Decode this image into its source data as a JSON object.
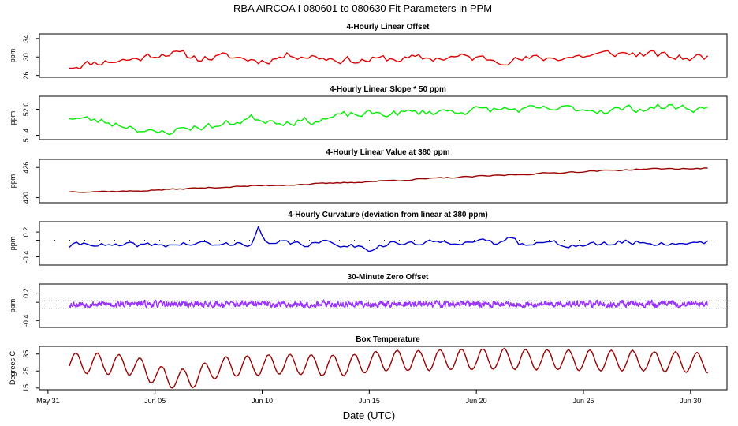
{
  "figure": {
    "title": "RBA   AIRCOA I   080601 to 080630   Fit Parameters in PPM",
    "xlabel": "Date (UTC)",
    "x_ticks": [
      {
        "day": 0,
        "label": "May 31"
      },
      {
        "day": 5,
        "label": "Jun 05"
      },
      {
        "day": 10,
        "label": "Jun 10"
      },
      {
        "day": 15,
        "label": "Jun 15"
      },
      {
        "day": 20,
        "label": "Jun 20"
      },
      {
        "day": 25,
        "label": "Jun 25"
      },
      {
        "day": 30,
        "label": "Jun 30"
      }
    ],
    "x_range_days": [
      -0.4,
      31.7
    ],
    "data_span_days": [
      1.0,
      30.8
    ]
  },
  "chart_data": [
    {
      "type": "line",
      "title": "4-Hourly Linear Offset",
      "ylabel": "ppm",
      "color": "#e00000",
      "ylim": [
        25.6,
        35.0
      ],
      "yticks": [
        26,
        30,
        34
      ],
      "ytick_labels": [
        "26",
        "30",
        "34"
      ],
      "points_per_day": 6,
      "x": [
        1.0,
        2.5,
        4.0,
        5.5,
        7.0,
        8.5,
        10.0,
        11.5,
        13.0,
        14.5,
        16.0,
        17.5,
        19.0,
        20.5,
        22.0,
        23.5,
        25.0,
        26.5,
        28.0,
        29.5,
        30.8
      ],
      "y": [
        28.0,
        29.0,
        29.5,
        31.0,
        29.8,
        30.0,
        29.2,
        30.6,
        29.8,
        29.2,
        29.6,
        29.6,
        30.0,
        29.6,
        29.4,
        29.8,
        30.2,
        30.8,
        30.6,
        29.8,
        30.0
      ],
      "noise": 0.8,
      "seed": 11
    },
    {
      "type": "line",
      "title": "4-Hourly Linear Slope * 50 ppm",
      "ylabel": "ppm",
      "color": "#00ee00",
      "ylim": [
        51.3,
        52.3
      ],
      "yticks": [
        51.4,
        52.0
      ],
      "ytick_labels": [
        "51.4",
        "52.0"
      ],
      "points_per_day": 6,
      "x": [
        1.0,
        2.5,
        4.0,
        5.0,
        6.5,
        8.0,
        9.5,
        11.0,
        12.5,
        14.0,
        15.5,
        17.0,
        18.5,
        20.0,
        21.5,
        23.0,
        24.5,
        26.0,
        27.5,
        29.0,
        30.8
      ],
      "y": [
        51.82,
        51.72,
        51.6,
        51.42,
        51.58,
        51.62,
        51.8,
        51.72,
        51.74,
        51.86,
        51.9,
        51.92,
        51.96,
        51.98,
        52.0,
        51.98,
        52.02,
        51.98,
        52.02,
        52.06,
        52.0
      ],
      "noise": 0.08,
      "seed": 23
    },
    {
      "type": "line",
      "title": "4-Hourly Linear Value at 380 ppm",
      "ylabel": "ppm",
      "color": "#990000",
      "ylim": [
        419.0,
        427.6
      ],
      "yticks": [
        420,
        426
      ],
      "ytick_labels": [
        "420",
        "426"
      ],
      "points_per_day": 6,
      "x": [
        1.0,
        4.0,
        7.0,
        10.0,
        13.0,
        16.0,
        19.0,
        22.0,
        25.0,
        28.0,
        30.8
      ],
      "y": [
        421.2,
        421.3,
        421.9,
        422.4,
        422.8,
        423.4,
        424.0,
        424.6,
        425.2,
        425.7,
        425.8
      ],
      "noise": 0.12,
      "seed": 37
    },
    {
      "type": "line",
      "title": "4-Hourly Curvature (deviation from linear at 380 ppm)",
      "ylabel": "ppm",
      "color": "#0000cc",
      "ylim": [
        -0.6,
        0.45
      ],
      "yticks": [
        -0.4,
        0.0,
        0.2
      ],
      "ytick_labels": [
        "-0.4",
        "",
        "0.2"
      ],
      "dotted_reference": 0.0,
      "points_per_day": 6,
      "x": [
        1.0,
        2.0,
        3.0,
        4.0,
        5.0,
        6.0,
        7.0,
        8.0,
        9.0,
        9.6,
        9.8,
        10.0,
        10.3,
        11.0,
        12.0,
        13.0,
        14.0,
        15.0,
        16.0,
        17.0,
        18.0,
        19.0,
        20.0,
        21.0,
        21.8,
        22.0,
        23.0,
        24.0,
        25.0,
        26.0,
        27.0,
        28.0,
        29.0,
        30.0,
        30.8
      ],
      "y": [
        -0.14,
        -0.06,
        -0.16,
        -0.12,
        -0.12,
        -0.1,
        -0.08,
        -0.12,
        -0.08,
        -0.06,
        0.34,
        0.1,
        -0.14,
        -0.06,
        -0.1,
        -0.06,
        -0.1,
        -0.2,
        -0.06,
        -0.1,
        -0.06,
        -0.02,
        -0.04,
        -0.08,
        0.1,
        -0.04,
        -0.06,
        -0.1,
        -0.12,
        -0.1,
        -0.04,
        -0.06,
        -0.08,
        -0.06,
        -0.02
      ],
      "noise": 0.06,
      "seed": 41
    },
    {
      "type": "line",
      "title": "30-Minute Zero Offset",
      "ylabel": "ppm",
      "color": "#9933ff",
      "ylim": [
        -0.55,
        0.4
      ],
      "yticks": [
        -0.4,
        0.0,
        0.2
      ],
      "ytick_labels": [
        "-0.4",
        "",
        "0.2"
      ],
      "dotted_references": [
        0.03,
        -0.13
      ],
      "points_per_day": 48,
      "x": [
        1.0,
        30.8
      ],
      "y": [
        -0.04,
        -0.04
      ],
      "noise": 0.06,
      "seed": 53
    },
    {
      "type": "line",
      "title": "Box Temperature",
      "ylabel": "Degrees C",
      "color": "#990000",
      "ylim": [
        14.0,
        39.5
      ],
      "yticks": [
        15,
        25,
        35
      ],
      "ytick_labels": [
        "15",
        "25",
        "35"
      ],
      "points_per_day": 12,
      "diurnal_amplitude": 6.0,
      "x": [
        1.0,
        4.0,
        5.2,
        6.5,
        8.0,
        11.0,
        14.0,
        15.5,
        18.0,
        21.0,
        24.0,
        27.0,
        30.8
      ],
      "y": [
        30.0,
        28.5,
        22.0,
        20.0,
        27.0,
        29.0,
        28.0,
        31.0,
        31.5,
        32.0,
        31.5,
        31.0,
        30.0
      ],
      "noise": 0.3,
      "seed": 67
    }
  ]
}
